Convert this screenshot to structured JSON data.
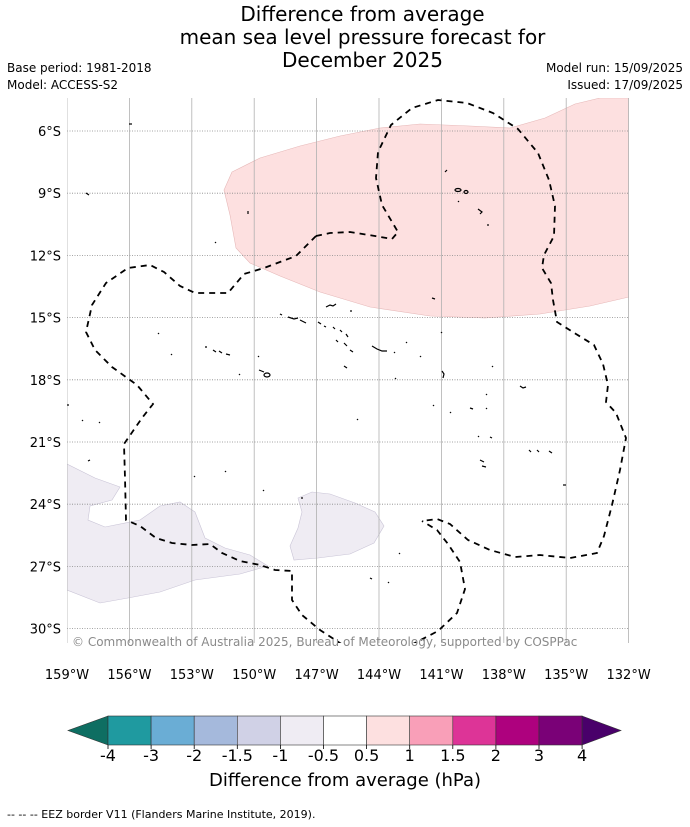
{
  "title_lines": [
    "Difference from average",
    "mean sea level pressure forecast for",
    "December 2025"
  ],
  "base_period": "Base period: 1981-2018",
  "model": "Model: ACCESS-S2",
  "model_run": "Model run: 15/09/2025",
  "issued": "Issued: 17/09/2025",
  "copyright": "© Commonwealth of Australia 2025, Bureau of Meteorology, supported by COSPPac",
  "lat_labels": [
    "6°S",
    "9°S",
    "12°S",
    "15°S",
    "18°S",
    "21°S",
    "24°S",
    "27°S",
    "30°S"
  ],
  "lon_labels": [
    "159°W",
    "156°W",
    "153°W",
    "150°W",
    "147°W",
    "144°W",
    "141°W",
    "138°W",
    "135°W",
    "132°W"
  ],
  "colorbar": {
    "ticks": [
      "-4",
      "-3",
      "-2",
      "-1.5",
      "-1",
      "-0.5",
      "0.5",
      "1",
      "1.5",
      "2",
      "3",
      "4"
    ],
    "colors": [
      "#0e6e62",
      "#1f9aa0",
      "#6aadd5",
      "#a5b9dc",
      "#d0d1e6",
      "#efecf3",
      "#ffffff",
      "#fde0e0",
      "#f99fb8",
      "#dd3497",
      "#ae017e",
      "#7a0177",
      "#49006a"
    ],
    "label": "Difference from average (hPa)"
  },
  "legend_note": "--  --  -- EEZ border V11 (Flanders Marine Institute, 2019).",
  "colors": {
    "positive_anomaly": "#fde0e0",
    "negative_anomaly": "#efecf3",
    "gridline": "#888888",
    "eez_border": "#000000"
  }
}
